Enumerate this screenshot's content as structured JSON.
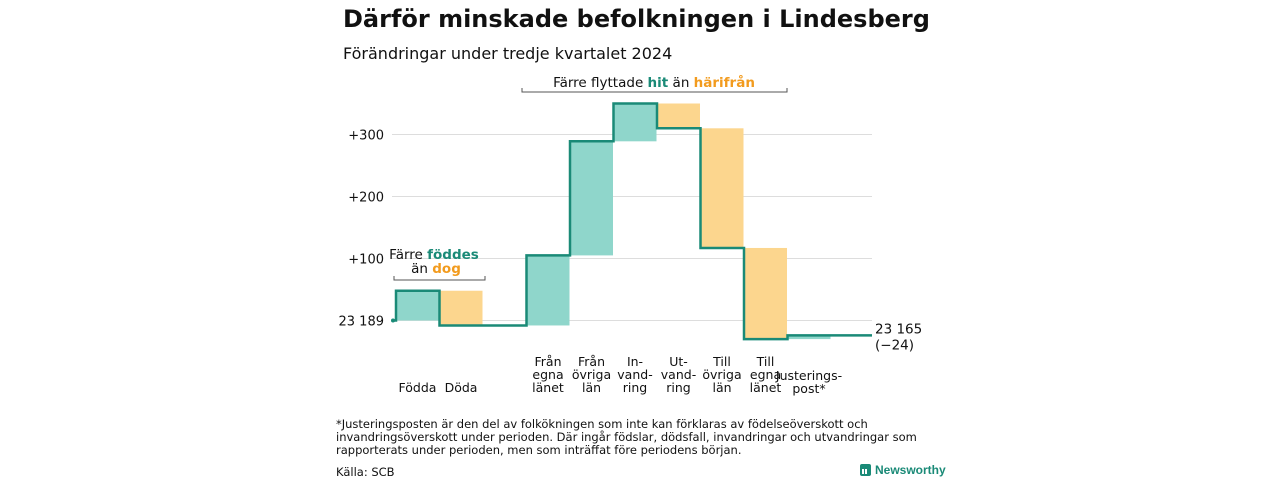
{
  "title": "Därför minskade befolkningen i Lindesberg",
  "subtitle": "Förändringar under tredje kvartalet 2024",
  "footnote": "*Justeringsposten är den del av folkökningen som inte kan förklaras av födelseöverskott och invandringsöverskott under perioden. Där ingår födslar, dödsfall, invandringar och utvandringar som rapporterats under perioden, men som inträffat före periodens början.",
  "source": "Källa: SCB",
  "brand": "Newsworthy",
  "colors": {
    "positive": "#8fd6cb",
    "negative": "#fcd68e",
    "line": "#1a8a77",
    "accent_teal": "#1a8a77",
    "accent_orange": "#f29b1e"
  },
  "chart_data": {
    "type": "waterfall",
    "start_value": 23189,
    "start_label": "23 189",
    "end_label_value": "23 165",
    "end_label_change": "(−24)",
    "y_ticks": [
      {
        "value": 0,
        "label": "23 189"
      },
      {
        "value": 100,
        "label": "+100"
      },
      {
        "value": 200,
        "label": "+200"
      },
      {
        "value": 300,
        "label": "+300"
      }
    ],
    "ylim": [
      -30,
      360
    ],
    "steps": [
      {
        "label": [
          "Födda"
        ],
        "change": 48
      },
      {
        "label": [
          "Döda"
        ],
        "change": -56
      },
      {
        "label": [
          "Från",
          "egna",
          "länet"
        ],
        "change": 113
      },
      {
        "label": [
          "Från",
          "övriga",
          "län"
        ],
        "change": 184
      },
      {
        "label": [
          "In-",
          "vand-",
          "ring"
        ],
        "change": 61
      },
      {
        "label": [
          "Ut-",
          "vand-",
          "ring"
        ],
        "change": -40
      },
      {
        "label": [
          "Till",
          "övriga",
          "län"
        ],
        "change": -193
      },
      {
        "label": [
          "Till",
          "egna",
          "länet"
        ],
        "change": -147
      },
      {
        "label": [
          "Justerings-",
          "post*"
        ],
        "change": 6
      }
    ],
    "annotations": {
      "births": {
        "line1_prefix": "Färre ",
        "line1_highlight": "föddes",
        "line2_prefix": "än ",
        "line2_highlight": "dog"
      },
      "migration": {
        "prefix": "Färre flyttade ",
        "highlight1": "hit",
        "middle": " än ",
        "highlight2": "härifrån"
      }
    }
  }
}
